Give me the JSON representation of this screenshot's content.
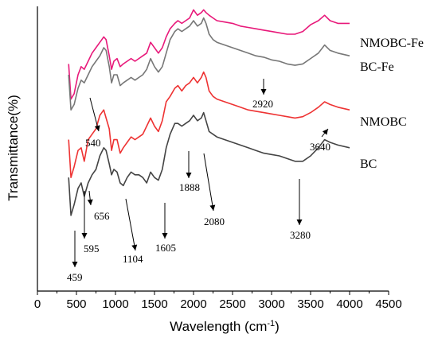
{
  "chart_data": {
    "type": "line",
    "xlabel": "Wavelength (cm",
    "xlabel_sup": "-1",
    "xlabel_end": ")",
    "ylabel": "Transmittance(%)",
    "xlim": [
      0,
      4500
    ],
    "xticks": [
      0,
      500,
      1000,
      1500,
      2000,
      2500,
      3000,
      3500,
      4000,
      4500
    ],
    "yticks_shown": false,
    "series": [
      {
        "name": "NMOBC-Fe",
        "color": "#e8197a",
        "x": [
          400,
          430,
          470,
          520,
          560,
          600,
          650,
          700,
          750,
          800,
          850,
          880,
          920,
          950,
          980,
          1020,
          1060,
          1100,
          1150,
          1200,
          1250,
          1300,
          1350,
          1400,
          1450,
          1500,
          1550,
          1600,
          1650,
          1700,
          1760,
          1800,
          1850,
          1900,
          1950,
          2000,
          2050,
          2100,
          2130,
          2160,
          2200,
          2250,
          2300,
          2400,
          2500,
          2600,
          2700,
          2800,
          2900,
          3000,
          3100,
          3200,
          3300,
          3400,
          3500,
          3600,
          3680,
          3750,
          3850,
          4000
        ],
        "y": [
          0.84,
          0.71,
          0.73,
          0.8,
          0.83,
          0.82,
          0.85,
          0.88,
          0.9,
          0.92,
          0.94,
          0.93,
          0.87,
          0.82,
          0.85,
          0.86,
          0.83,
          0.84,
          0.85,
          0.86,
          0.85,
          0.86,
          0.87,
          0.88,
          0.92,
          0.9,
          0.88,
          0.9,
          0.94,
          0.97,
          0.99,
          1.0,
          0.99,
          1.0,
          1.01,
          1.04,
          1.02,
          1.03,
          1.04,
          1.03,
          1.02,
          1.01,
          1.0,
          0.995,
          0.99,
          0.98,
          0.975,
          0.97,
          0.965,
          0.96,
          0.955,
          0.95,
          0.95,
          0.96,
          0.985,
          1.0,
          1.02,
          1.0,
          0.99,
          0.99
        ]
      },
      {
        "name": "BC-Fe",
        "color": "#777777",
        "x": [
          400,
          430,
          470,
          520,
          560,
          600,
          650,
          700,
          750,
          800,
          850,
          880,
          920,
          950,
          980,
          1020,
          1060,
          1100,
          1150,
          1200,
          1250,
          1300,
          1350,
          1400,
          1450,
          1500,
          1550,
          1600,
          1650,
          1700,
          1760,
          1800,
          1850,
          1900,
          1950,
          2000,
          2050,
          2100,
          2130,
          2160,
          2200,
          2250,
          2300,
          2400,
          2500,
          2600,
          2700,
          2800,
          2900,
          3000,
          3100,
          3200,
          3300,
          3400,
          3500,
          3600,
          3680,
          3750,
          3850,
          4000
        ],
        "y": [
          0.8,
          0.67,
          0.69,
          0.75,
          0.78,
          0.77,
          0.8,
          0.83,
          0.85,
          0.87,
          0.9,
          0.89,
          0.83,
          0.77,
          0.8,
          0.8,
          0.76,
          0.77,
          0.78,
          0.79,
          0.78,
          0.79,
          0.8,
          0.82,
          0.86,
          0.83,
          0.81,
          0.83,
          0.88,
          0.93,
          0.96,
          0.97,
          0.96,
          0.97,
          0.98,
          1.0,
          0.98,
          0.99,
          1.01,
          0.99,
          0.95,
          0.93,
          0.92,
          0.91,
          0.9,
          0.89,
          0.88,
          0.87,
          0.865,
          0.855,
          0.85,
          0.84,
          0.835,
          0.84,
          0.86,
          0.88,
          0.91,
          0.89,
          0.88,
          0.87
        ]
      },
      {
        "name": "NMOBC",
        "color": "#ee3333",
        "x": [
          400,
          430,
          470,
          520,
          560,
          600,
          650,
          700,
          750,
          800,
          850,
          880,
          920,
          950,
          980,
          1020,
          1060,
          1100,
          1150,
          1200,
          1250,
          1300,
          1350,
          1400,
          1450,
          1500,
          1550,
          1600,
          1650,
          1700,
          1760,
          1800,
          1850,
          1900,
          1950,
          2000,
          2050,
          2100,
          2130,
          2160,
          2200,
          2250,
          2300,
          2400,
          2500,
          2600,
          2700,
          2800,
          2900,
          3000,
          3100,
          3200,
          3300,
          3400,
          3500,
          3600,
          3680,
          3750,
          3850,
          4000
        ],
        "y": [
          0.56,
          0.42,
          0.46,
          0.52,
          0.53,
          0.48,
          0.56,
          0.58,
          0.6,
          0.65,
          0.67,
          0.64,
          0.6,
          0.52,
          0.56,
          0.56,
          0.51,
          0.53,
          0.55,
          0.57,
          0.56,
          0.57,
          0.58,
          0.61,
          0.64,
          0.61,
          0.59,
          0.63,
          0.7,
          0.72,
          0.75,
          0.76,
          0.74,
          0.76,
          0.77,
          0.79,
          0.77,
          0.79,
          0.81,
          0.79,
          0.74,
          0.72,
          0.71,
          0.7,
          0.69,
          0.68,
          0.67,
          0.665,
          0.66,
          0.655,
          0.65,
          0.645,
          0.64,
          0.645,
          0.66,
          0.68,
          0.7,
          0.69,
          0.68,
          0.67
        ]
      },
      {
        "name": "BC",
        "color": "#444444",
        "x": [
          400,
          430,
          470,
          520,
          560,
          600,
          650,
          700,
          750,
          800,
          850,
          880,
          920,
          950,
          980,
          1020,
          1060,
          1100,
          1150,
          1200,
          1250,
          1300,
          1350,
          1400,
          1450,
          1500,
          1550,
          1600,
          1650,
          1700,
          1760,
          1800,
          1850,
          1900,
          1950,
          2000,
          2050,
          2100,
          2130,
          2160,
          2200,
          2250,
          2300,
          2400,
          2500,
          2600,
          2700,
          2800,
          2900,
          3000,
          3100,
          3200,
          3300,
          3400,
          3500,
          3600,
          3680,
          3750,
          3850,
          4000
        ],
        "y": [
          0.42,
          0.28,
          0.32,
          0.38,
          0.4,
          0.35,
          0.4,
          0.43,
          0.45,
          0.5,
          0.53,
          0.52,
          0.47,
          0.43,
          0.45,
          0.44,
          0.4,
          0.39,
          0.42,
          0.44,
          0.43,
          0.43,
          0.42,
          0.4,
          0.44,
          0.42,
          0.41,
          0.45,
          0.53,
          0.58,
          0.62,
          0.62,
          0.61,
          0.62,
          0.63,
          0.65,
          0.63,
          0.64,
          0.66,
          0.63,
          0.59,
          0.58,
          0.57,
          0.56,
          0.55,
          0.54,
          0.53,
          0.52,
          0.51,
          0.505,
          0.5,
          0.49,
          0.48,
          0.48,
          0.5,
          0.53,
          0.56,
          0.55,
          0.54,
          0.53
        ]
      }
    ],
    "annotations": [
      {
        "label": "540",
        "x": 540
      },
      {
        "label": "2920",
        "x": 2920
      },
      {
        "label": "3640",
        "x": 3640
      },
      {
        "label": "656",
        "x": 656
      },
      {
        "label": "595",
        "x": 595
      },
      {
        "label": "459",
        "x": 459
      },
      {
        "label": "1104",
        "x": 1104
      },
      {
        "label": "1605",
        "x": 1605
      },
      {
        "label": "1888",
        "x": 1888
      },
      {
        "label": "2080",
        "x": 2080
      },
      {
        "label": "3280",
        "x": 3280
      }
    ]
  }
}
